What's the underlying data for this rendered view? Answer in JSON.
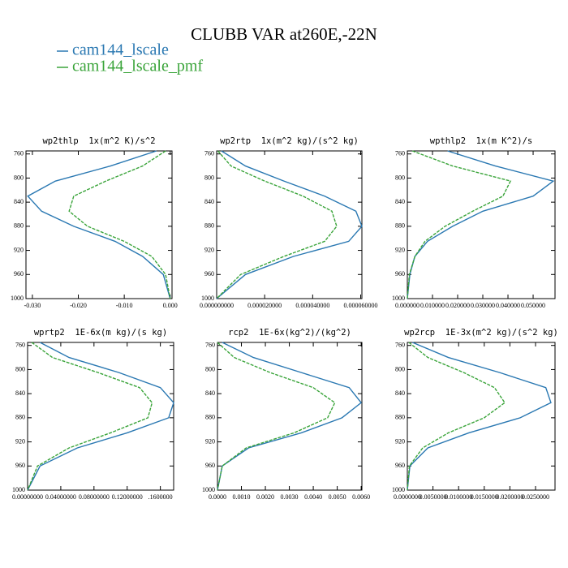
{
  "title": "CLUBB VAR at260E,-22N",
  "legend": [
    {
      "name": "cam144_lscale",
      "color": "#2a78b2"
    },
    {
      "name": "cam144_lscale_pmf",
      "color": "#3aa43a"
    }
  ],
  "chart_data": [
    {
      "type": "line",
      "title": "wp2thlp  1x(m^2 K)/s^2",
      "y": [
        755,
        780,
        805,
        830,
        855,
        880,
        905,
        930,
        960,
        1000
      ],
      "series": [
        {
          "values": [
            -0.003,
            -0.013,
            -0.025,
            -0.031,
            -0.028,
            -0.021,
            -0.012,
            -0.006,
            -0.0015,
            0
          ]
        },
        {
          "values": [
            -0.001,
            -0.006,
            -0.014,
            -0.021,
            -0.022,
            -0.018,
            -0.01,
            -0.004,
            -0.001,
            0
          ]
        }
      ],
      "xlim": [
        -0.0314,
        0.0004
      ],
      "xticks": [
        {
          "value": -0.03,
          "label": "-0.030"
        },
        {
          "value": -0.02,
          "label": "-0.020"
        },
        {
          "value": -0.01,
          "label": "-0.010"
        },
        {
          "value": 0,
          "label": "0.000"
        }
      ],
      "ylim": [
        755,
        1000
      ],
      "yticks": [
        760,
        800,
        840,
        880,
        920,
        960,
        1000
      ]
    },
    {
      "type": "line",
      "title": "wp2rtp  1x(m^2 kg)/(s^2 kg)",
      "y": [
        755,
        780,
        805,
        830,
        855,
        880,
        905,
        930,
        960,
        1000
      ],
      "series": [
        {
          "values": [
            2e-06,
            1.2e-05,
            2.8e-05,
            4.5e-05,
            5.8e-05,
            6.05e-05,
            5.5e-05,
            3.2e-05,
            1.2e-05,
            0
          ]
        },
        {
          "values": [
            5e-07,
            6e-06,
            2e-05,
            3.6e-05,
            4.8e-05,
            5e-05,
            4.5e-05,
            2.8e-05,
            1e-05,
            0
          ]
        }
      ],
      "xlim": [
        0,
        6.05e-05
      ],
      "xticks": [
        {
          "value": 0,
          "label": "0.000000000"
        },
        {
          "value": 2e-05,
          "label": "0.000020000"
        },
        {
          "value": 4e-05,
          "label": "0.000040000"
        },
        {
          "value": 6e-05,
          "label": "0.000060000"
        }
      ],
      "ylim": [
        755,
        1000
      ],
      "yticks": [
        760,
        800,
        840,
        880,
        920,
        960,
        1000
      ]
    },
    {
      "type": "line",
      "title": "wpthlp2  1x(m K^2)/s",
      "y": [
        755,
        780,
        805,
        830,
        855,
        880,
        905,
        930,
        960,
        1000
      ],
      "series": [
        {
          "values": [
            0.016,
            0.035,
            0.058,
            0.05,
            0.03,
            0.018,
            0.008,
            0.003,
            0.001,
            0
          ]
        },
        {
          "values": [
            0.002,
            0.018,
            0.041,
            0.038,
            0.026,
            0.015,
            0.007,
            0.003,
            0.0008,
            0
          ]
        }
      ],
      "xlim": [
        0,
        0.0587
      ],
      "xticks": [
        {
          "value": 0,
          "label": "0.000000"
        },
        {
          "value": 0.01,
          "label": "0.010000"
        },
        {
          "value": 0.02,
          "label": "0.020000"
        },
        {
          "value": 0.03,
          "label": "0.030000"
        },
        {
          "value": 0.04,
          "label": "0.040000"
        },
        {
          "value": 0.05,
          "label": "0.050000"
        }
      ],
      "ylim": [
        755,
        1000
      ],
      "yticks": [
        760,
        800,
        840,
        880,
        920,
        960,
        1000
      ]
    },
    {
      "type": "line",
      "title": "wprtp2  1E-6x(m kg)/(s kg)",
      "y": [
        755,
        780,
        805,
        830,
        855,
        880,
        905,
        930,
        960,
        1000
      ],
      "series": [
        {
          "values": [
            0.015,
            0.05,
            0.11,
            0.16,
            0.176,
            0.17,
            0.12,
            0.06,
            0.015,
            0
          ]
        },
        {
          "values": [
            0.005,
            0.03,
            0.085,
            0.135,
            0.15,
            0.145,
            0.1,
            0.05,
            0.012,
            0
          ]
        }
      ],
      "xlim": [
        0,
        0.176
      ],
      "xticks": [
        {
          "value": 0,
          "label": "0.00000000"
        },
        {
          "value": 0.04,
          "label": "0.04000000"
        },
        {
          "value": 0.08,
          "label": "0.08000000"
        },
        {
          "value": 0.12,
          "label": "0.12000000"
        },
        {
          "value": 0.16,
          "label": ".1600000"
        }
      ],
      "ylim": [
        755,
        1000
      ],
      "yticks": [
        760,
        800,
        840,
        880,
        920,
        960,
        1000
      ]
    },
    {
      "type": "line",
      "title": "rcp2  1E-6x(kg^2)/(kg^2)",
      "y": [
        755,
        780,
        805,
        830,
        855,
        880,
        905,
        930,
        960,
        1000
      ],
      "series": [
        {
          "values": [
            0.0002,
            0.0015,
            0.0035,
            0.0055,
            0.006,
            0.0052,
            0.0035,
            0.0013,
            0.0002,
            0
          ]
        },
        {
          "values": [
            0,
            0.0007,
            0.0022,
            0.004,
            0.0049,
            0.0046,
            0.0032,
            0.0012,
            0.0002,
            0
          ]
        }
      ],
      "xlim": [
        0,
        0.00603
      ],
      "xticks": [
        {
          "value": 0,
          "label": "0.0000"
        },
        {
          "value": 0.001,
          "label": "0.0010"
        },
        {
          "value": 0.002,
          "label": "0.0020"
        },
        {
          "value": 0.003,
          "label": "0.0030"
        },
        {
          "value": 0.004,
          "label": "0.0040"
        },
        {
          "value": 0.005,
          "label": "0.0050"
        },
        {
          "value": 0.006,
          "label": "0.0060"
        }
      ],
      "ylim": [
        755,
        1000
      ],
      "yticks": [
        760,
        800,
        840,
        880,
        920,
        960,
        1000
      ]
    },
    {
      "type": "line",
      "title": "wp2rcp  1E-3x(m^2 kg)/(s^2 kg)",
      "y": [
        755,
        780,
        805,
        830,
        855,
        880,
        905,
        930,
        960,
        1000
      ],
      "series": [
        {
          "values": [
            0.001,
            0.008,
            0.018,
            0.027,
            0.028,
            0.022,
            0.012,
            0.004,
            0.0005,
            0
          ]
        },
        {
          "values": [
            0.0003,
            0.004,
            0.011,
            0.017,
            0.019,
            0.015,
            0.008,
            0.003,
            0.0004,
            0
          ]
        }
      ],
      "xlim": [
        0,
        0.0288
      ],
      "xticks": [
        {
          "value": 0,
          "label": "0.0000000"
        },
        {
          "value": 0.005,
          "label": "0.0050000"
        },
        {
          "value": 0.01,
          "label": "0.0100000"
        },
        {
          "value": 0.015,
          "label": "0.0150000"
        },
        {
          "value": 0.02,
          "label": "0.0200000"
        },
        {
          "value": 0.025,
          "label": "0.0250000"
        }
      ],
      "ylim": [
        755,
        1000
      ],
      "yticks": [
        760,
        800,
        840,
        880,
        920,
        960,
        1000
      ]
    }
  ]
}
